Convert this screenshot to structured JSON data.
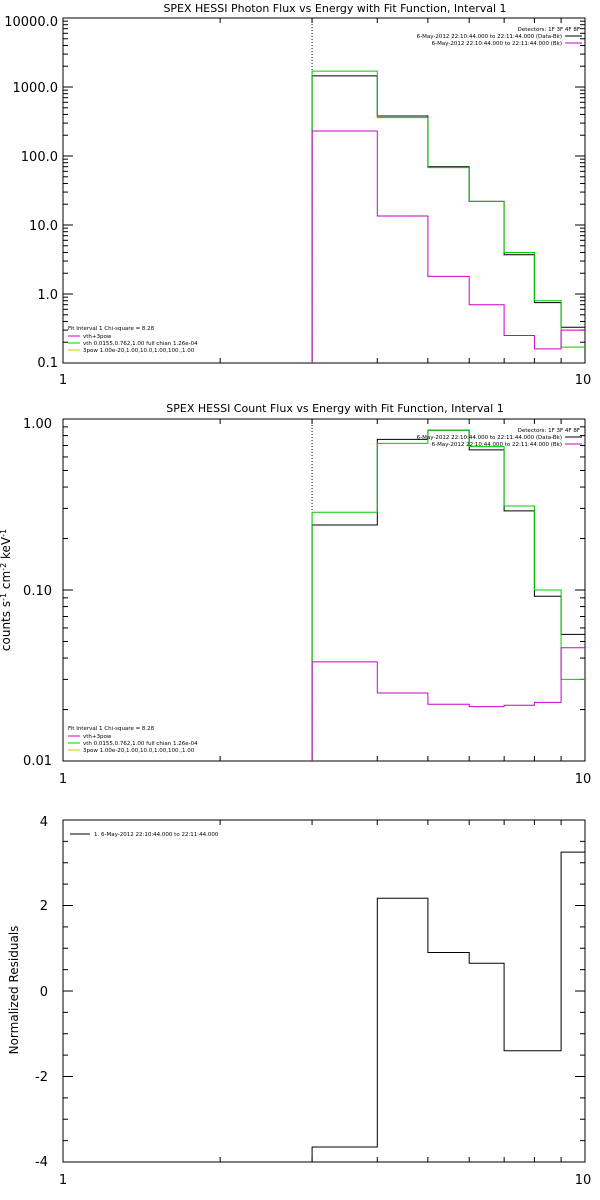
{
  "chart_data": [
    {
      "type": "line",
      "title": "SPEX HESSI Photon Flux vs Energy with Fit Function, Interval 1",
      "ylabel": "",
      "xlabel": "",
      "xscale": "log",
      "yscale": "log",
      "xlim": [
        1,
        10
      ],
      "ylim": [
        0.1,
        10000
      ],
      "xticks": [
        "1",
        "10"
      ],
      "yticks": [
        "10000.0",
        "1000.0",
        "100.0",
        "10.0",
        "1.0",
        "0.1"
      ],
      "marker_x": 3,
      "legend_right": {
        "header": "Detectors: 1F 3F 4F 8F",
        "entries": [
          "6-May-2012 22:10:44.000 to 22:11:44.000 (Data-Bk)",
          "6-May-2012 22:10:44.000 to 22:11:44.000 (Bk)"
        ]
      },
      "legend_left": {
        "header": "Fit Interval 1   Chi-square = 8.28",
        "entries": [
          "vth+3pow",
          "vth 0.0155,0.762,1.00  full chian 1.26e-04",
          "3pow 1.00e-20,1.00,10.0,1.00,100.,1.00"
        ]
      },
      "bin_edges": [
        3,
        4,
        5,
        6,
        7,
        8,
        9,
        10
      ],
      "series": [
        {
          "name": "6-May-2012 22:10:44.000 to 22:11:44.000 (Data-Bk)",
          "color": "#000000",
          "values": [
            1450,
            380,
            70,
            22,
            3.7,
            0.75,
            0.33
          ]
        },
        {
          "name": "vth+3pow",
          "color": "#00cc00",
          "values": [
            1700,
            360,
            68,
            22,
            4.0,
            0.8,
            0.17
          ]
        },
        {
          "name": "6-May-2012 22:10:44.000 to 22:11:44.000 (Bk)",
          "color": "#cc00cc",
          "values": [
            230,
            13.5,
            1.8,
            0.7,
            0.25,
            0.16,
            0.3
          ]
        }
      ]
    },
    {
      "type": "line",
      "title": "SPEX HESSI Count Flux vs Energy with Fit Function, Interval 1",
      "ylabel": "counts s-1 cm-2 keV-1",
      "xlabel": "",
      "xscale": "log",
      "yscale": "log",
      "xlim": [
        1,
        10
      ],
      "ylim": [
        0.01,
        1
      ],
      "xticks": [
        "1",
        "10"
      ],
      "yticks": [
        "1.00",
        "0.10",
        "0.01"
      ],
      "marker_x": 3,
      "legend_right": {
        "header": "Detectors: 1F 3F 4F 8F",
        "entries": [
          "6-May-2012 22:10:44.000 to 22:11:44.000 (Data-Bk)",
          "6-May-2012 22:10:44.000 to 22:11:44.000 (Bk)"
        ]
      },
      "legend_left": {
        "header": "Fit Interval 1   Chi-square = 8.28",
        "entries": [
          "vth+3pow",
          "vth 0.0155,0.762,1.00  full chian 1.26e-04",
          "3pow 1.00e-20,1.00,10.0,1.00,100.,1.00"
        ]
      },
      "bin_edges": [
        3,
        4,
        5,
        6,
        7,
        8,
        9,
        10
      ],
      "series": [
        {
          "name": "6-May-2012 22:10:44.000 to 22:11:44.000 (Data-Bk)",
          "color": "#000000",
          "values": [
            0.24,
            0.76,
            0.86,
            0.66,
            0.29,
            0.092,
            0.055
          ]
        },
        {
          "name": "vth+3pow",
          "color": "#00cc00",
          "values": [
            0.285,
            0.72,
            0.86,
            0.69,
            0.31,
            0.1,
            0.03
          ]
        },
        {
          "name": "6-May-2012 22:10:44.000 to 22:11:44.000 (Bk)",
          "color": "#cc00cc",
          "values": [
            0.038,
            0.025,
            0.0215,
            0.0208,
            0.0212,
            0.022,
            0.046
          ]
        }
      ]
    },
    {
      "type": "line",
      "title": "",
      "ylabel": "Normalized Residuals",
      "xlabel": "",
      "xscale": "log",
      "yscale": "linear",
      "xlim": [
        1,
        10
      ],
      "ylim": [
        -4,
        4
      ],
      "xticks": [
        "1",
        "10"
      ],
      "yticks": [
        "4",
        "2",
        "0",
        "-2",
        "-4"
      ],
      "legend": {
        "entries": [
          "1.  6-May-2012 22:10:44.000 to 22:11:44.000"
        ]
      },
      "bin_edges": [
        3,
        4,
        5,
        6,
        7,
        8,
        9,
        10
      ],
      "series": [
        {
          "name": "1.  6-May-2012 22:10:44.000 to 22:11:44.000",
          "color": "#000000",
          "values": [
            -3.65,
            2.17,
            0.9,
            0.65,
            -1.4,
            -1.4,
            3.25
          ]
        }
      ]
    }
  ]
}
